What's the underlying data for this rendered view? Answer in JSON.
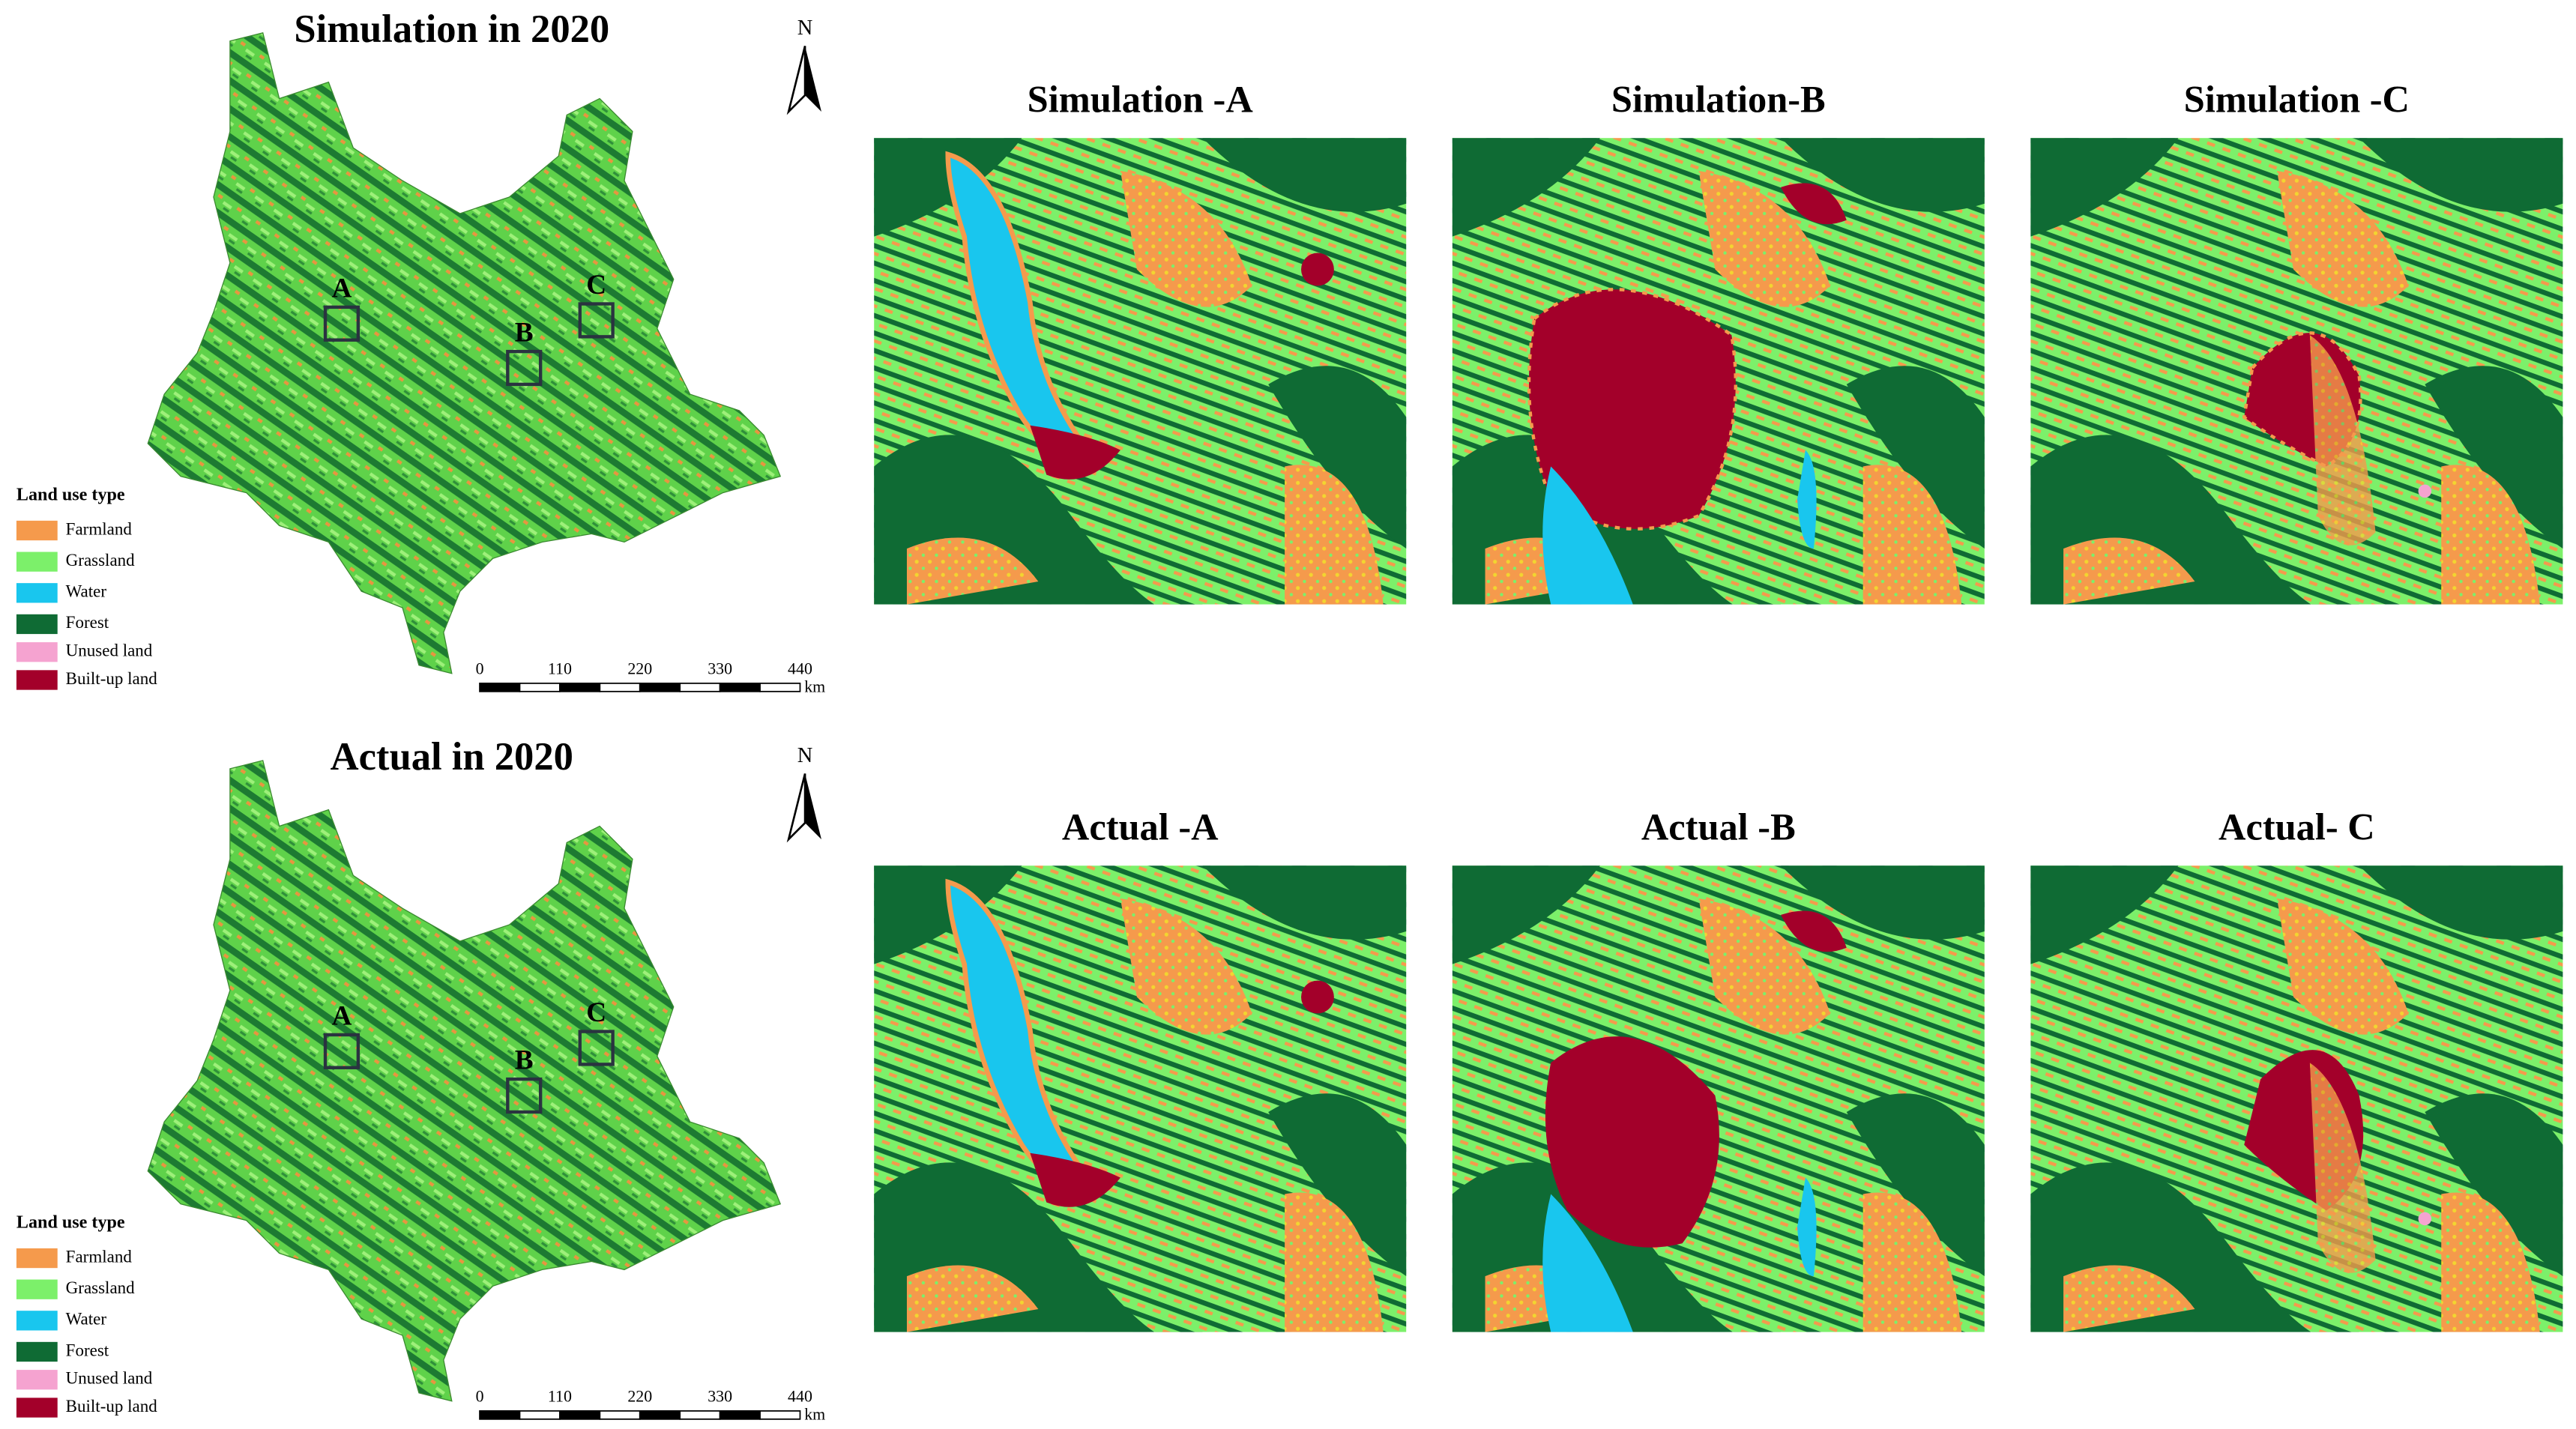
{
  "rows": [
    {
      "map": {
        "title": "Simulation in 2020",
        "north": "N",
        "boxes": [
          "A",
          "B",
          "C"
        ],
        "legend": {
          "title": "Land use type",
          "items": [
            "Farmland",
            "Grassland",
            "Water",
            "Forest",
            "Unused land",
            "Built-up land"
          ]
        },
        "scale_bar": {
          "ticks": [
            0,
            110,
            220,
            330,
            440
          ],
          "unit": "km"
        }
      },
      "panels": [
        "Simulation -A",
        "Simulation-B",
        "Simulation -C"
      ]
    },
    {
      "map": {
        "title": "Actual in 2020",
        "north": "N",
        "boxes": [
          "A",
          "B",
          "C"
        ],
        "legend": {
          "title": "Land use type",
          "items": [
            "Farmland",
            "Grassland",
            "Water",
            "Forest",
            "Unused land",
            "Built-up land"
          ]
        },
        "scale_bar": {
          "ticks": [
            0,
            110,
            220,
            330,
            440
          ],
          "unit": "km"
        }
      },
      "panels": [
        "Actual -A",
        "Actual -B",
        "Actual- C"
      ]
    }
  ]
}
